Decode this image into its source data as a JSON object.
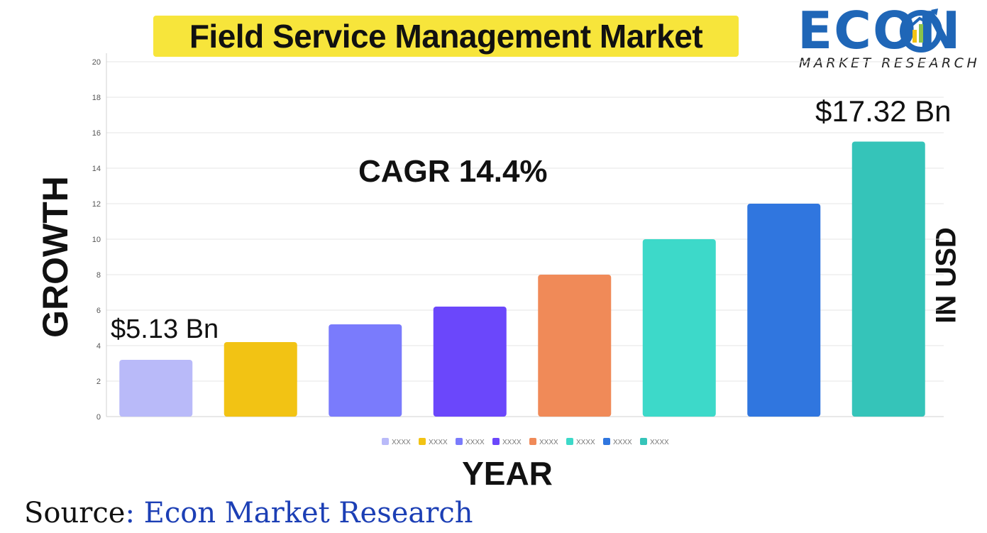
{
  "header": {
    "title": "Field Service Management Market"
  },
  "logo": {
    "wordmark": "ECON",
    "subtitle": "MARKET RESEARCH",
    "icon": "bar-growth-arrow-icon",
    "color": "#1f66b7"
  },
  "axes": {
    "y_title": "GROWTH",
    "x_title": "YEAR",
    "right_title": "IN USD"
  },
  "chart_data": {
    "type": "bar",
    "categories": [
      "XXXX",
      "XXXX",
      "XXXX",
      "XXXX",
      "XXXX",
      "XXXX",
      "XXXX",
      "XXXX"
    ],
    "values": [
      3.2,
      4.2,
      5.2,
      6.2,
      8.0,
      10.0,
      12.0,
      15.5
    ],
    "colors": [
      "#b9baf9",
      "#f2c314",
      "#7a7bfc",
      "#6b47fb",
      "#f08a58",
      "#3dd9c9",
      "#3076df",
      "#35c4b9"
    ],
    "ylim": [
      0,
      20
    ],
    "yticks": [
      0,
      2,
      4,
      6,
      8,
      10,
      12,
      14,
      16,
      18,
      20
    ],
    "grid": true,
    "legend": "bottom",
    "annotations": {
      "start_value": "$5.13 Bn",
      "end_value": "$17.32 Bn",
      "cagr": "CAGR  14.4%"
    }
  },
  "footer": {
    "source_label": "Source",
    "source_value": ": Econ Market Research"
  }
}
